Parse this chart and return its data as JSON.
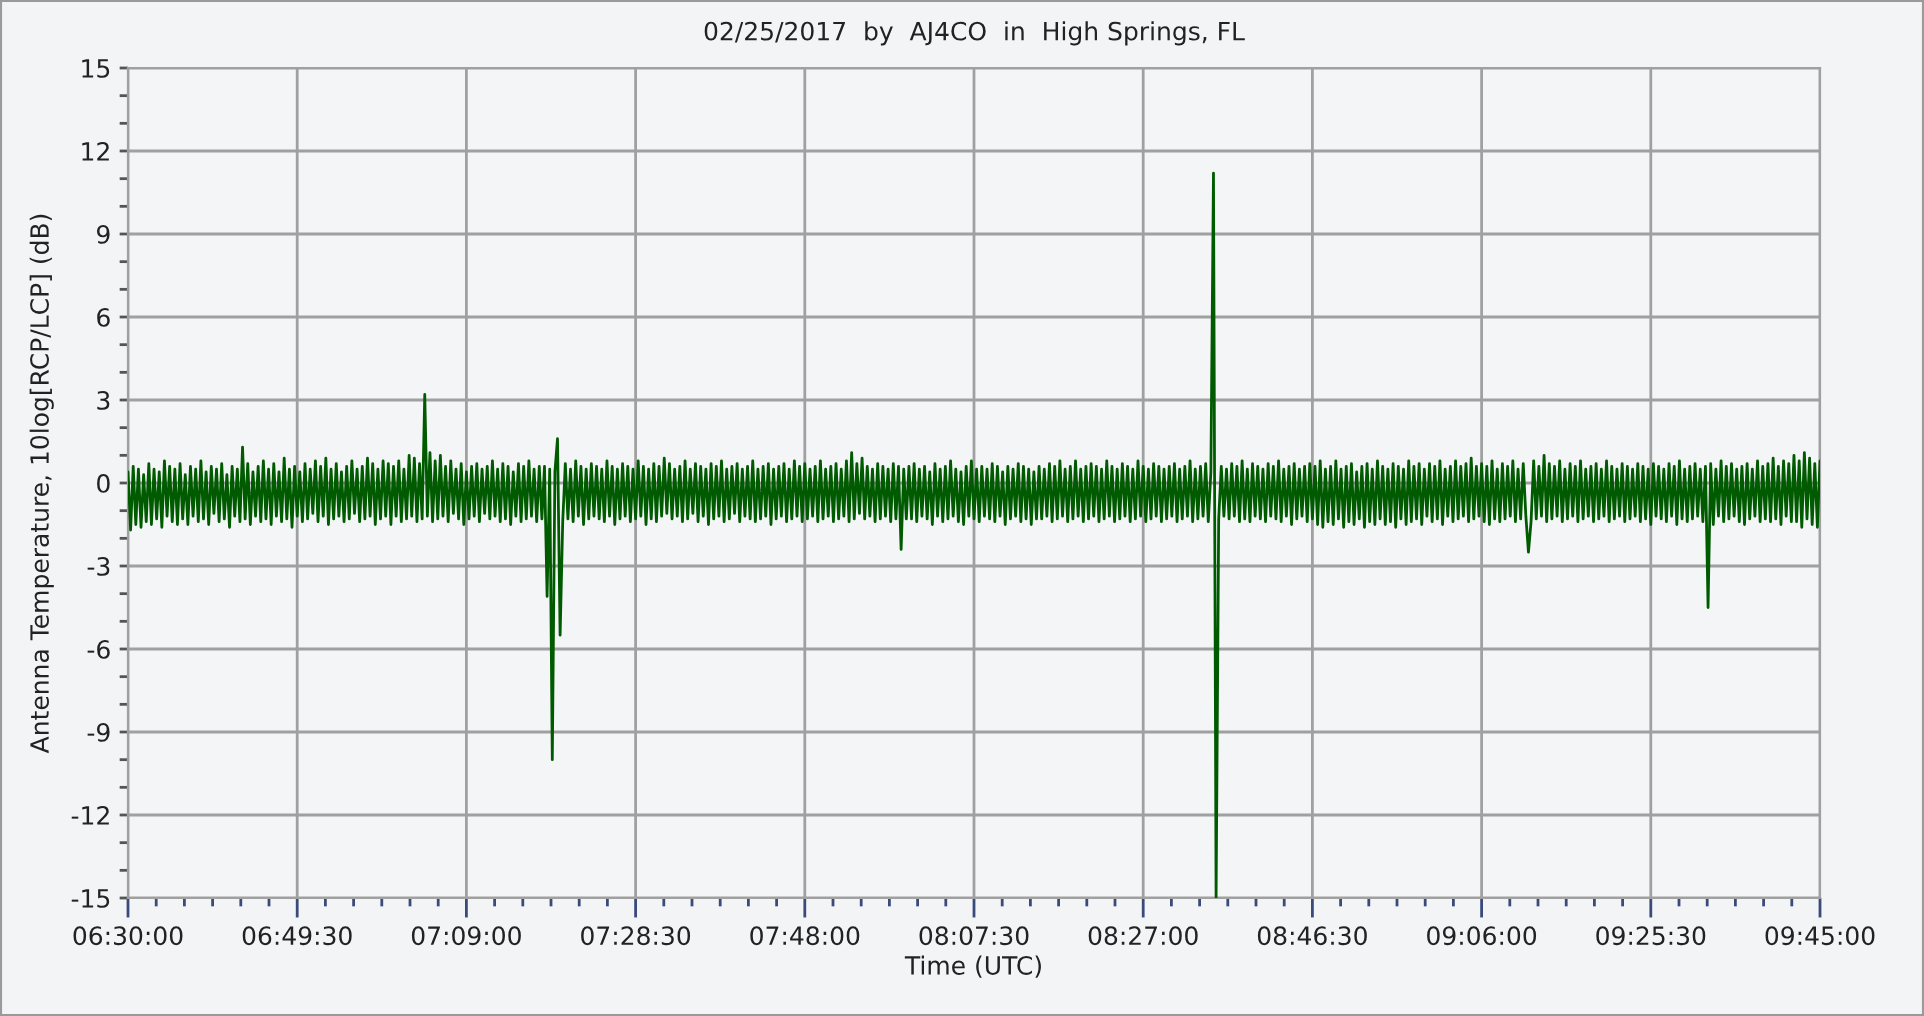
{
  "chart_data": {
    "type": "line",
    "title": "02/25/2017  by  AJ4CO  in  High Springs, FL",
    "xlabel": "Time (UTC)",
    "ylabel": "Antenna Temperature, 10log[RCP/LCP] (dB)",
    "xlim": [
      6.5,
      9.75
    ],
    "xticks": [
      {
        "value": 6.5,
        "label": "06:30:00"
      },
      {
        "value": 6.825,
        "label": "06:49:30"
      },
      {
        "value": 7.15,
        "label": "07:09:00"
      },
      {
        "value": 7.475,
        "label": "07:28:30"
      },
      {
        "value": 7.8,
        "label": "07:48:00"
      },
      {
        "value": 8.125,
        "label": "08:07:30"
      },
      {
        "value": 8.45,
        "label": "08:27:00"
      },
      {
        "value": 8.775,
        "label": "08:46:30"
      },
      {
        "value": 9.1,
        "label": "09:06:00"
      },
      {
        "value": 9.425,
        "label": "09:25:30"
      },
      {
        "value": 9.75,
        "label": "09:45:00"
      }
    ],
    "ylim": [
      -15,
      15
    ],
    "yticks": [
      -15,
      -12,
      -9,
      -6,
      -3,
      0,
      3,
      6,
      9,
      12,
      15
    ],
    "grid": true,
    "series": [
      {
        "color": "#005a00",
        "x": [
          6.5,
          6.505,
          6.51,
          6.515,
          6.52,
          6.525,
          6.53,
          6.535,
          6.54,
          6.545,
          6.55,
          6.555,
          6.56,
          6.565,
          6.57,
          6.575,
          6.58,
          6.585,
          6.59,
          6.595,
          6.6,
          6.605,
          6.61,
          6.615,
          6.62,
          6.625,
          6.63,
          6.635,
          6.64,
          6.645,
          6.65,
          6.655,
          6.66,
          6.665,
          6.67,
          6.675,
          6.68,
          6.685,
          6.69,
          6.695,
          6.7,
          6.705,
          6.71,
          6.715,
          6.72,
          6.725,
          6.73,
          6.735,
          6.74,
          6.745,
          6.75,
          6.755,
          6.76,
          6.765,
          6.77,
          6.775,
          6.78,
          6.785,
          6.79,
          6.795,
          6.8,
          6.805,
          6.81,
          6.815,
          6.82,
          6.825,
          6.83,
          6.835,
          6.84,
          6.845,
          6.85,
          6.855,
          6.86,
          6.865,
          6.87,
          6.875,
          6.88,
          6.885,
          6.89,
          6.895,
          6.9,
          6.905,
          6.91,
          6.915,
          6.92,
          6.925,
          6.93,
          6.935,
          6.94,
          6.945,
          6.95,
          6.955,
          6.96,
          6.965,
          6.97,
          6.975,
          6.98,
          6.985,
          6.99,
          6.995,
          7.0,
          7.005,
          7.01,
          7.015,
          7.02,
          7.025,
          7.03,
          7.035,
          7.04,
          7.045,
          7.05,
          7.055,
          7.06,
          7.065,
          7.07,
          7.075,
          7.08,
          7.085,
          7.09,
          7.095,
          7.1,
          7.105,
          7.11,
          7.115,
          7.12,
          7.125,
          7.13,
          7.135,
          7.14,
          7.145,
          7.15,
          7.155,
          7.16,
          7.165,
          7.17,
          7.175,
          7.18,
          7.185,
          7.19,
          7.195,
          7.2,
          7.205,
          7.21,
          7.215,
          7.22,
          7.225,
          7.23,
          7.235,
          7.24,
          7.245,
          7.25,
          7.255,
          7.26,
          7.265,
          7.27,
          7.275,
          7.28,
          7.285,
          7.29,
          7.295,
          7.3,
          7.305,
          7.31,
          7.315,
          7.32,
          7.325,
          7.33,
          7.335,
          7.34,
          7.345,
          7.35,
          7.355,
          7.36,
          7.365,
          7.37,
          7.375,
          7.38,
          7.385,
          7.39,
          7.395,
          7.4,
          7.405,
          7.41,
          7.415,
          7.42,
          7.425,
          7.43,
          7.435,
          7.44,
          7.445,
          7.45,
          7.455,
          7.46,
          7.465,
          7.47,
          7.475,
          7.48,
          7.485,
          7.49,
          7.495,
          7.5,
          7.505,
          7.51,
          7.515,
          7.52,
          7.525,
          7.53,
          7.535,
          7.54,
          7.545,
          7.55,
          7.555,
          7.56,
          7.565,
          7.57,
          7.575,
          7.58,
          7.585,
          7.59,
          7.595,
          7.6,
          7.605,
          7.61,
          7.615,
          7.62,
          7.625,
          7.63,
          7.635,
          7.64,
          7.645,
          7.65,
          7.655,
          7.66,
          7.665,
          7.67,
          7.675,
          7.68,
          7.685,
          7.69,
          7.695,
          7.7,
          7.705,
          7.71,
          7.715,
          7.72,
          7.725,
          7.73,
          7.735,
          7.74,
          7.745,
          7.75,
          7.755,
          7.76,
          7.765,
          7.77,
          7.775,
          7.78,
          7.785,
          7.79,
          7.795,
          7.8,
          7.805,
          7.81,
          7.815,
          7.82,
          7.825,
          7.83,
          7.835,
          7.84,
          7.845,
          7.85,
          7.855,
          7.86,
          7.865,
          7.87,
          7.875,
          7.88,
          7.885,
          7.89,
          7.895,
          7.9,
          7.905,
          7.91,
          7.915,
          7.92,
          7.925,
          7.93,
          7.935,
          7.94,
          7.945,
          7.95,
          7.955,
          7.96,
          7.965,
          7.97,
          7.975,
          7.98,
          7.985,
          7.99,
          7.995,
          8.0,
          8.005,
          8.01,
          8.015,
          8.02,
          8.025,
          8.03,
          8.035,
          8.04,
          8.045,
          8.05,
          8.055,
          8.06,
          8.065,
          8.07,
          8.075,
          8.08,
          8.085,
          8.09,
          8.095,
          8.1,
          8.105,
          8.11,
          8.115,
          8.12,
          8.125,
          8.13,
          8.135,
          8.14,
          8.145,
          8.15,
          8.155,
          8.16,
          8.165,
          8.17,
          8.175,
          8.18,
          8.185,
          8.19,
          8.195,
          8.2,
          8.205,
          8.21,
          8.215,
          8.22,
          8.225,
          8.23,
          8.235,
          8.24,
          8.245,
          8.25,
          8.255,
          8.26,
          8.265,
          8.27,
          8.275,
          8.28,
          8.285,
          8.29,
          8.295,
          8.3,
          8.305,
          8.31,
          8.315,
          8.32,
          8.325,
          8.33,
          8.335,
          8.34,
          8.345,
          8.35,
          8.355,
          8.36,
          8.365,
          8.37,
          8.375,
          8.38,
          8.385,
          8.39,
          8.395,
          8.4,
          8.405,
          8.41,
          8.415,
          8.42,
          8.425,
          8.43,
          8.435,
          8.44,
          8.445,
          8.45,
          8.455,
          8.46,
          8.465,
          8.47,
          8.475,
          8.48,
          8.485,
          8.49,
          8.495,
          8.5,
          8.505,
          8.51,
          8.515,
          8.52,
          8.525,
          8.53,
          8.535,
          8.54,
          8.545,
          8.55,
          8.555,
          8.56,
          8.565,
          8.57,
          8.575,
          8.58,
          8.585,
          8.59,
          8.595,
          8.6,
          8.605,
          8.61,
          8.615,
          8.62,
          8.625,
          8.63,
          8.635,
          8.64,
          8.645,
          8.65,
          8.655,
          8.66,
          8.665,
          8.67,
          8.675,
          8.68,
          8.685,
          8.69,
          8.695,
          8.7,
          8.705,
          8.71,
          8.715,
          8.72,
          8.725,
          8.73,
          8.735,
          8.74,
          8.745,
          8.75,
          8.755,
          8.76,
          8.765,
          8.77,
          8.775,
          8.78,
          8.785,
          8.79,
          8.795,
          8.8,
          8.805,
          8.81,
          8.815,
          8.82,
          8.825,
          8.83,
          8.835,
          8.84,
          8.845,
          8.85,
          8.855,
          8.86,
          8.865,
          8.87,
          8.875,
          8.88,
          8.885,
          8.89,
          8.895,
          8.9,
          8.905,
          8.91,
          8.915,
          8.92,
          8.925,
          8.93,
          8.935,
          8.94,
          8.945,
          8.95,
          8.955,
          8.96,
          8.965,
          8.97,
          8.975,
          8.98,
          8.985,
          8.99,
          8.995,
          9.0,
          9.005,
          9.01,
          9.015,
          9.02,
          9.025,
          9.03,
          9.035,
          9.04,
          9.045,
          9.05,
          9.055,
          9.06,
          9.065,
          9.07,
          9.075,
          9.08,
          9.085,
          9.09,
          9.095,
          9.1,
          9.105,
          9.11,
          9.115,
          9.12,
          9.125,
          9.13,
          9.135,
          9.14,
          9.145,
          9.15,
          9.155,
          9.16,
          9.165,
          9.17,
          9.175,
          9.18,
          9.185,
          9.19,
          9.195,
          9.2,
          9.205,
          9.21,
          9.215,
          9.22,
          9.225,
          9.23,
          9.235,
          9.24,
          9.245,
          9.25,
          9.255,
          9.26,
          9.265,
          9.27,
          9.275,
          9.28,
          9.285,
          9.29,
          9.295,
          9.3,
          9.305,
          9.31,
          9.315,
          9.32,
          9.325,
          9.33,
          9.335,
          9.34,
          9.345,
          9.35,
          9.355,
          9.36,
          9.365,
          9.37,
          9.375,
          9.38,
          9.385,
          9.39,
          9.395,
          9.4,
          9.405,
          9.41,
          9.415,
          9.42,
          9.425,
          9.43,
          9.435,
          9.44,
          9.445,
          9.45,
          9.455,
          9.46,
          9.465,
          9.47,
          9.475,
          9.48,
          9.485,
          9.49,
          9.495,
          9.5,
          9.505,
          9.51,
          9.515,
          9.52,
          9.525,
          9.53,
          9.535,
          9.54,
          9.545,
          9.55,
          9.555,
          9.56,
          9.565,
          9.57,
          9.575,
          9.58,
          9.585,
          9.59,
          9.595,
          9.6,
          9.605,
          9.61,
          9.615,
          9.62,
          9.625,
          9.63,
          9.635,
          9.64,
          9.645,
          9.65,
          9.655,
          9.66,
          9.665,
          9.67,
          9.675,
          9.68,
          9.685,
          9.69,
          9.695,
          9.7,
          9.705,
          9.71,
          9.715,
          9.72,
          9.725,
          9.73,
          9.735,
          9.74,
          9.745,
          9.75
        ],
        "values": [
          0.4,
          -1.7,
          0.6,
          -1.5,
          0.5,
          -1.6,
          0.3,
          -1.4,
          0.7,
          -1.5,
          0.5,
          -1.3,
          0.4,
          -1.6,
          0.8,
          -1.2,
          0.6,
          -1.4,
          0.5,
          -1.5,
          0.7,
          -1.3,
          0.3,
          -1.5,
          0.6,
          -1.2,
          0.5,
          -1.4,
          0.8,
          -1.3,
          0.4,
          -1.5,
          0.6,
          -1.1,
          0.5,
          -1.4,
          0.7,
          -1.3,
          0.3,
          -1.6,
          0.6,
          -1.2,
          0.5,
          -1.4,
          1.3,
          -1.3,
          0.7,
          -1.5,
          0.4,
          -1.2,
          0.6,
          -1.4,
          0.8,
          -1.3,
          0.5,
          -1.5,
          0.7,
          -1.2,
          0.4,
          -1.4,
          0.9,
          -1.3,
          0.5,
          -1.6,
          0.6,
          -1.2,
          0.4,
          -1.4,
          0.7,
          -1.3,
          0.5,
          -1.1,
          0.8,
          -1.4,
          0.6,
          -1.2,
          0.9,
          -1.5,
          0.5,
          -1.3,
          0.7,
          -1.2,
          0.4,
          -1.4,
          0.6,
          -1.3,
          0.8,
          -1.1,
          0.5,
          -1.4,
          0.6,
          -1.3,
          0.9,
          -1.2,
          0.7,
          -1.5,
          0.5,
          -1.3,
          0.8,
          -1.2,
          0.7,
          -1.5,
          0.6,
          -1.2,
          0.8,
          -1.4,
          0.5,
          -1.3,
          1.0,
          -1.2,
          0.9,
          -1.4,
          0.7,
          -1.3,
          3.2,
          -1.2,
          1.1,
          -1.4,
          0.8,
          -1.3,
          1.0,
          -1.2,
          0.6,
          -1.4,
          0.8,
          -1.1,
          0.5,
          -1.3,
          0.7,
          -1.5,
          0.4,
          -1.3,
          0.6,
          -1.2,
          0.7,
          -1.4,
          0.5,
          -1.1,
          0.6,
          -1.3,
          0.8,
          -1.2,
          0.5,
          -1.4,
          0.7,
          -1.3,
          0.6,
          -1.5,
          0.4,
          -1.2,
          0.7,
          -1.4,
          0.6,
          -1.3,
          0.8,
          -1.2,
          0.5,
          -1.4,
          0.6,
          -1.3,
          0.6,
          -4.1,
          0.5,
          -10.0,
          0.4,
          1.6,
          -5.5,
          -1.4,
          0.7,
          -1.3,
          0.5,
          -1.4,
          0.8,
          -1.2,
          0.6,
          -1.5,
          0.5,
          -1.3,
          0.7,
          -1.2,
          0.6,
          -1.3,
          0.5,
          -1.4,
          0.8,
          -1.2,
          0.6,
          -1.5,
          0.5,
          -1.3,
          0.7,
          -1.2,
          0.6,
          -1.4,
          0.5,
          -1.3,
          0.8,
          -1.2,
          0.6,
          -1.5,
          0.5,
          -1.3,
          0.7,
          -1.4,
          0.6,
          -1.2,
          0.9,
          -1.1,
          0.7,
          -1.3,
          0.5,
          -1.2,
          0.6,
          -1.4,
          0.8,
          -1.3,
          0.5,
          -1.1,
          0.7,
          -1.4,
          0.6,
          -1.2,
          0.5,
          -1.5,
          0.7,
          -1.3,
          0.6,
          -1.2,
          0.8,
          -1.4,
          0.5,
          -1.3,
          0.6,
          -1.1,
          0.7,
          -1.4,
          0.5,
          -1.2,
          0.6,
          -1.3,
          0.8,
          -1.4,
          0.5,
          -1.3,
          0.6,
          -1.2,
          0.7,
          -1.5,
          0.5,
          -1.3,
          0.6,
          -1.2,
          0.7,
          -1.4,
          0.5,
          -1.3,
          0.8,
          -1.2,
          0.6,
          -1.4,
          0.7,
          -1.3,
          0.5,
          -1.2,
          0.6,
          -1.4,
          0.8,
          -1.3,
          0.5,
          -1.2,
          0.6,
          -1.4,
          0.7,
          -1.3,
          0.5,
          -1.2,
          0.8,
          -1.4,
          1.1,
          -1.3,
          0.7,
          -1.1,
          0.9,
          -1.3,
          0.6,
          -1.2,
          0.5,
          -1.4,
          0.7,
          -1.3,
          0.6,
          -1.2,
          0.5,
          -1.4,
          0.7,
          -1.3,
          0.6,
          -2.4,
          0.5,
          -1.3,
          0.6,
          -1.3,
          0.7,
          -1.4,
          0.5,
          -1.2,
          0.6,
          -1.3,
          0.4,
          -1.5,
          0.7,
          -1.2,
          0.5,
          -1.4,
          0.6,
          -1.3,
          0.8,
          -1.2,
          0.5,
          -1.4,
          0.4,
          -1.5,
          0.6,
          -1.2,
          0.8,
          -1.3,
          0.5,
          -1.4,
          0.6,
          -1.2,
          0.5,
          -1.3,
          0.7,
          -1.4,
          0.6,
          -1.2,
          0.4,
          -1.5,
          0.6,
          -1.3,
          0.5,
          -1.2,
          0.7,
          -1.4,
          0.6,
          -1.3,
          0.5,
          -1.5,
          0.4,
          -1.3,
          0.6,
          -1.3,
          0.5,
          -1.2,
          0.7,
          -1.4,
          0.6,
          -1.3,
          0.8,
          -1.2,
          0.5,
          -1.4,
          0.6,
          -1.3,
          0.8,
          -1.2,
          0.5,
          -1.4,
          0.6,
          -1.3,
          0.7,
          -1.2,
          0.6,
          -1.4,
          0.5,
          -1.3,
          0.8,
          -1.2,
          0.6,
          -1.4,
          0.5,
          -1.3,
          0.7,
          -1.2,
          0.6,
          -1.4,
          0.5,
          -1.3,
          0.8,
          -1.2,
          0.6,
          -1.4,
          0.5,
          -1.3,
          0.7,
          -1.2,
          0.6,
          -1.4,
          0.5,
          -1.3,
          0.6,
          -1.2,
          0.7,
          -1.4,
          0.5,
          -1.3,
          0.6,
          -1.2,
          0.8,
          -1.4,
          0.5,
          -1.3,
          0.6,
          -1.2,
          0.7,
          -1.4,
          0.4,
          11.2,
          -15.0,
          -1.3,
          0.6,
          -1.2,
          0.5,
          -1.3,
          0.7,
          -1.2,
          0.6,
          -1.4,
          0.8,
          -1.3,
          0.5,
          -1.4,
          0.7,
          -1.2,
          0.6,
          -1.3,
          0.5,
          -1.4,
          0.7,
          -1.2,
          0.6,
          -1.3,
          0.8,
          -1.4,
          0.5,
          -1.2,
          0.6,
          -1.5,
          0.7,
          -1.3,
          0.5,
          -1.2,
          0.6,
          -1.4,
          0.7,
          -1.3,
          0.6,
          -1.5,
          0.8,
          -1.6,
          0.5,
          -1.4,
          0.6,
          -1.5,
          0.8,
          -1.3,
          0.5,
          -1.6,
          0.6,
          -1.4,
          0.7,
          -1.5,
          0.4,
          -1.3,
          0.6,
          -1.6,
          0.7,
          -1.4,
          0.5,
          -1.5,
          0.8,
          -1.3,
          0.6,
          -1.5,
          0.5,
          -1.4,
          0.7,
          -1.6,
          0.6,
          -1.3,
          0.5,
          -1.5,
          0.8,
          -1.4,
          0.6,
          -1.3,
          0.7,
          -1.5,
          0.5,
          -1.2,
          0.7,
          -1.4,
          0.6,
          -1.3,
          0.8,
          -1.5,
          0.5,
          -1.2,
          0.6,
          -1.4,
          0.8,
          -1.3,
          0.6,
          -1.2,
          0.7,
          -1.4,
          0.9,
          -1.3,
          0.6,
          -1.2,
          0.7,
          -1.4,
          0.6,
          -1.5,
          0.8,
          -1.3,
          0.5,
          -1.4,
          0.7,
          -1.3,
          0.6,
          -1.2,
          0.8,
          -1.4,
          0.5,
          -1.3,
          0.7,
          -1.2,
          -2.5,
          -1.4,
          0.8,
          -1.3,
          0.6,
          -1.2,
          1.0,
          -1.4,
          0.7,
          -1.3,
          0.6,
          -1.2,
          0.8,
          -1.4,
          0.5,
          -1.3,
          0.7,
          -1.2,
          0.6,
          -1.4,
          0.8,
          -1.3,
          0.5,
          -1.2,
          0.6,
          -1.4,
          0.7,
          -1.3,
          0.5,
          -1.2,
          0.8,
          -1.4,
          0.6,
          -1.3,
          0.5,
          -1.2,
          0.7,
          -1.4,
          0.6,
          -1.3,
          0.5,
          -1.2,
          0.7,
          -1.4,
          0.6,
          -1.3,
          0.5,
          -1.5,
          0.7,
          -1.2,
          0.6,
          -1.3,
          0.5,
          -1.4,
          0.7,
          -1.2,
          0.6,
          -1.5,
          0.8,
          -1.3,
          0.5,
          -1.4,
          0.6,
          -1.3,
          0.7,
          -1.2,
          0.5,
          -1.4,
          0.6,
          -4.5,
          0.7,
          -1.5,
          0.5,
          -1.2,
          0.8,
          -1.4,
          0.6,
          -1.3,
          0.7,
          -1.2,
          0.5,
          -1.4,
          0.6,
          -1.5,
          0.7,
          -1.3,
          0.5,
          -1.2,
          0.8,
          -1.4,
          0.6,
          -1.3,
          0.7,
          -1.4,
          0.9,
          -1.3,
          0.6,
          -1.5,
          0.8,
          -1.2,
          0.7,
          -1.4,
          1.0,
          -1.4,
          0.8,
          -1.6,
          1.1,
          -1.3,
          0.9,
          -1.5,
          0.7,
          -1.6,
          0.8
        ]
      }
    ]
  }
}
